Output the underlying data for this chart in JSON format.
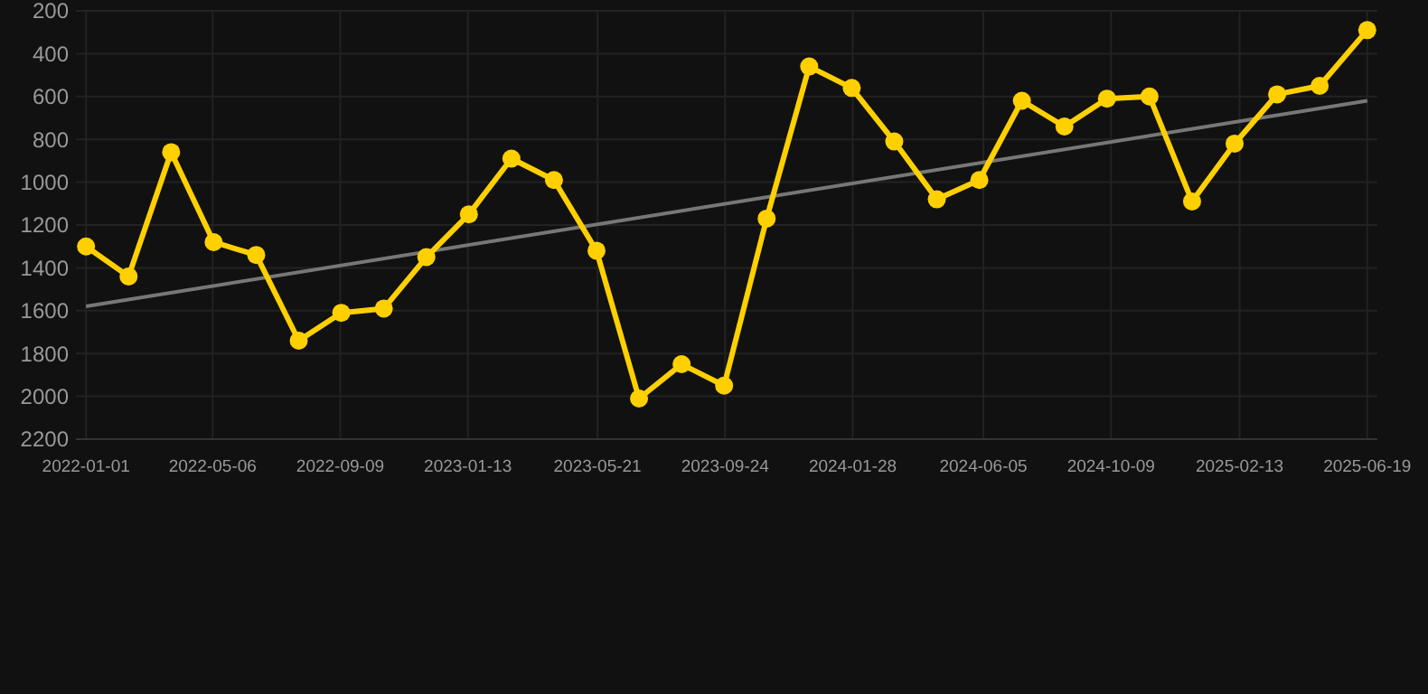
{
  "chart_data": {
    "type": "line",
    "x": [
      "2022-01-01",
      "2022-02-12",
      "2022-03-26",
      "2022-05-07",
      "2022-06-18",
      "2022-07-30",
      "2022-09-10",
      "2022-10-22",
      "2022-12-03",
      "2023-01-14",
      "2023-02-25",
      "2023-04-08",
      "2023-05-20",
      "2023-07-01",
      "2023-08-12",
      "2023-09-23",
      "2023-11-04",
      "2023-12-16",
      "2024-01-27",
      "2024-03-09",
      "2024-04-20",
      "2024-06-01",
      "2024-07-13",
      "2024-08-24",
      "2024-10-05",
      "2024-11-16",
      "2024-12-28",
      "2025-02-08",
      "2025-03-22",
      "2025-05-03",
      "2025-06-19"
    ],
    "series": [
      {
        "color": "#ffd000",
        "marker": "circle",
        "values": [
          1300,
          1440,
          860,
          1280,
          1340,
          1740,
          1610,
          1590,
          1350,
          1150,
          890,
          990,
          1320,
          2010,
          1850,
          1950,
          1170,
          460,
          560,
          810,
          1080,
          990,
          620,
          740,
          610,
          600,
          1090,
          820,
          590,
          550,
          290
        ]
      },
      {
        "type": "line",
        "color": "#777777",
        "marker": "none",
        "x": [
          "2022-01-01",
          "2025-06-19"
        ],
        "values": [
          1580,
          620
        ]
      }
    ],
    "xlim": [
      "2021-12-22",
      "2025-06-29"
    ],
    "xticks": [
      "2022-01-01",
      "2022-05-06",
      "2022-09-09",
      "2023-01-13",
      "2023-05-21",
      "2023-09-24",
      "2024-01-28",
      "2024-06-05",
      "2024-10-09",
      "2025-02-13",
      "2025-06-19"
    ],
    "ylim": [
      2200,
      200
    ],
    "yticks": [
      200,
      400,
      600,
      800,
      1000,
      1200,
      1400,
      1600,
      1800,
      2000,
      2200
    ],
    "grid": true
  }
}
